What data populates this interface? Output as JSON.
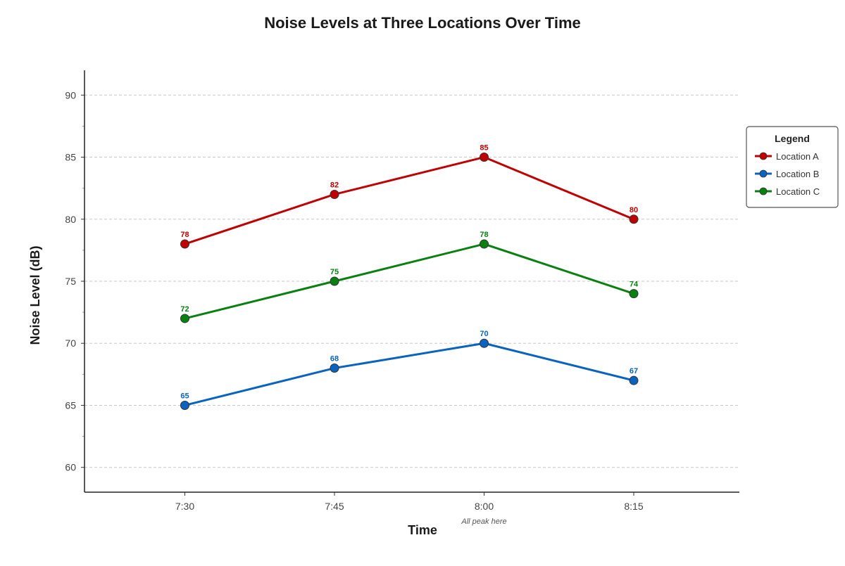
{
  "chart_data": {
    "type": "line",
    "title": "Noise Levels at Three Locations Over Time",
    "xlabel": "Time",
    "ylabel": "Noise Level (dB)",
    "categories": [
      "7:30",
      "7:45",
      "8:00",
      "8:15"
    ],
    "ylim": [
      58,
      92
    ],
    "yticks": [
      60,
      65,
      70,
      75,
      80,
      85,
      90
    ],
    "grid": true,
    "legend": {
      "title": "Legend",
      "position": "right"
    },
    "annotation": {
      "text": "All peak here",
      "category": "8:00"
    },
    "series": [
      {
        "name": "Location A",
        "values": [
          78,
          82,
          85,
          80
        ],
        "color": "#c00000"
      },
      {
        "name": "Location B",
        "values": [
          65,
          68,
          70,
          67
        ],
        "color": "#0a63bf"
      },
      {
        "name": "Location C",
        "values": [
          72,
          75,
          78,
          74
        ],
        "color": "#0a8010"
      }
    ]
  }
}
